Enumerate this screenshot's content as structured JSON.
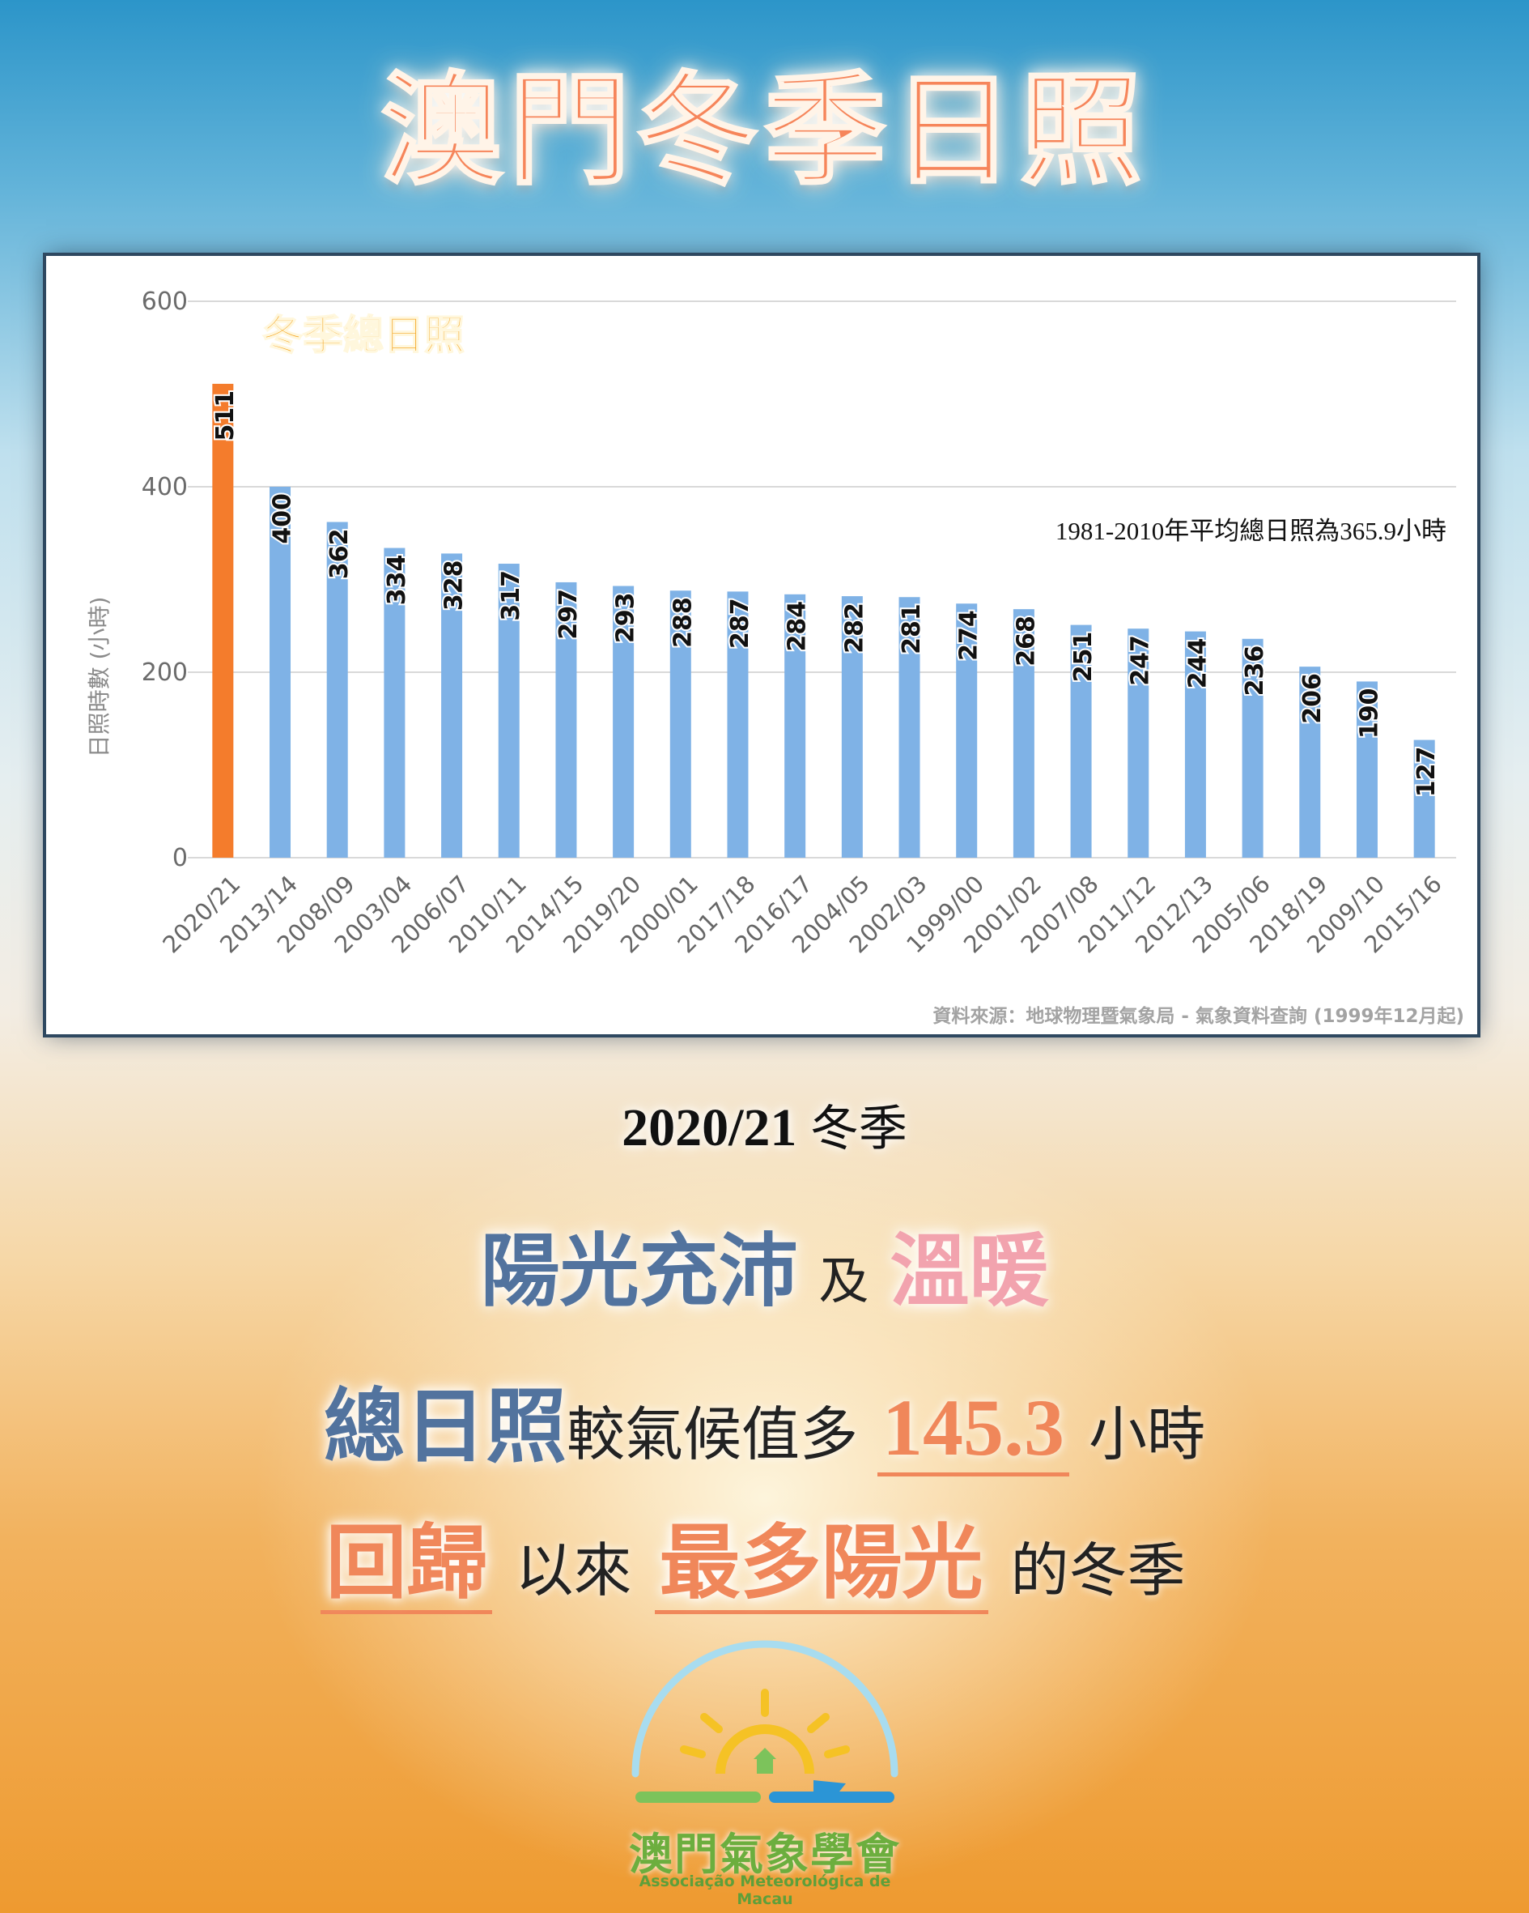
{
  "title": "澳門冬季日照",
  "chart_data": {
    "type": "bar",
    "title": "冬季總日照",
    "ylabel": "日照時數 (小時)",
    "ylim": [
      0,
      600
    ],
    "yticks": [
      0,
      200,
      400,
      600
    ],
    "categories": [
      "2020/21",
      "2013/14",
      "2008/09",
      "2003/04",
      "2006/07",
      "2010/11",
      "2014/15",
      "2019/20",
      "2000/01",
      "2017/18",
      "2016/17",
      "2004/05",
      "2002/03",
      "1999/00",
      "2001/02",
      "2007/08",
      "2011/12",
      "2012/13",
      "2005/06",
      "2018/19",
      "2009/10",
      "2015/16"
    ],
    "values": [
      511,
      400,
      362,
      334,
      328,
      317,
      297,
      293,
      288,
      287,
      284,
      282,
      281,
      274,
      268,
      251,
      247,
      244,
      236,
      206,
      190,
      127
    ],
    "highlight_index": 0,
    "colors": {
      "highlight": "#f47c2c",
      "bar": "#7fb2e6",
      "grid": "#d9d9d9"
    },
    "annotation": "1981-2010年平均總日照為365.9小時",
    "source": "資料來源：地球物理暨氣象局 - 氣象資料查詢 (1999年12月起)",
    "grid": true
  },
  "summary": {
    "season_year": "2020/21",
    "season_word": "冬季",
    "sunny": "陽光充沛",
    "and": "及",
    "warm": "溫暖",
    "total_sun": "總日照",
    "compare": "較氣候值多",
    "diff_value": "145.3",
    "unit": "小時",
    "return": "回歸",
    "since": "以來",
    "most_sun": "最多陽光",
    "of_winter": "的冬季"
  },
  "logo": {
    "name_cn": "澳門氣象學會",
    "name_pt": "Associação Meteorológica de Macau",
    "colors": {
      "arc": "#a8dcef",
      "sun": "#f5c225",
      "green": "#7cc35b",
      "blue": "#2b95d6"
    }
  }
}
